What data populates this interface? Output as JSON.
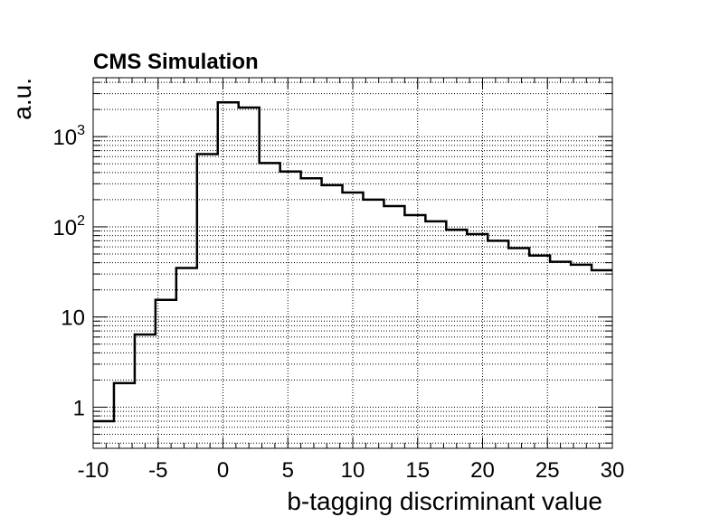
{
  "chart_data": {
    "type": "histogram",
    "title": "CMS Simulation",
    "xlabel": "b-tagging discriminant value",
    "ylabel": "a.u.",
    "xlim": [
      -10,
      30
    ],
    "ylim": [
      0.35,
      4500
    ],
    "yscale": "log",
    "grid": true,
    "x_ticks": [
      "-10",
      "-5",
      "0",
      "5",
      "10",
      "15",
      "20",
      "25",
      "30"
    ],
    "x_tick_values": [
      -10,
      -5,
      0,
      5,
      10,
      15,
      20,
      25,
      30
    ],
    "y_ticks": [
      {
        "value": 1,
        "base": "1",
        "exp": ""
      },
      {
        "value": 10,
        "base": "10",
        "exp": ""
      },
      {
        "value": 100,
        "base": "10",
        "exp": "2"
      },
      {
        "value": 1000,
        "base": "10",
        "exp": "3"
      }
    ],
    "bin_edges": [
      -10,
      -8.4,
      -6.8,
      -5.2,
      -3.6,
      -2,
      -0.4,
      1.2,
      2.8,
      4.4,
      6,
      7.6,
      9.2,
      10.8,
      12.4,
      14,
      15.6,
      17.2,
      18.8,
      20.4,
      22,
      23.6,
      25.2,
      26.8,
      28.4,
      30
    ],
    "values": [
      0.7,
      1.85,
      6.4,
      15.5,
      35,
      640,
      2400,
      2100,
      510,
      410,
      345,
      290,
      240,
      200,
      170,
      135,
      115,
      93,
      83,
      70,
      58,
      48,
      41,
      38,
      33
    ]
  }
}
